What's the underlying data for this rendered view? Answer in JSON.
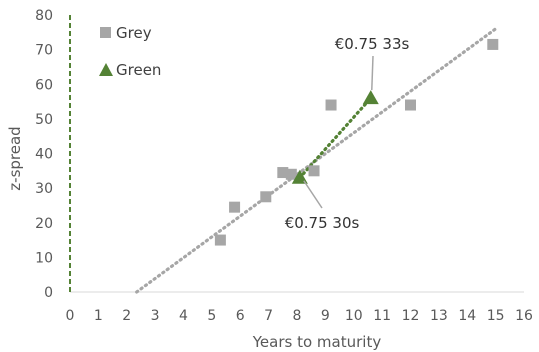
{
  "chart_data": {
    "type": "scatter",
    "xlabel": "Years to maturity",
    "ylabel": "z-spread",
    "xlim": [
      0,
      16
    ],
    "ylim": [
      0,
      80
    ],
    "xticks": [
      "0",
      "1",
      "2",
      "3",
      "4",
      "5",
      "6",
      "7",
      "8",
      "9",
      "10",
      "11",
      "12",
      "13",
      "14",
      "15",
      "16"
    ],
    "yticks": [
      "0",
      "10",
      "20",
      "30",
      "40",
      "50",
      "60",
      "70",
      "80"
    ],
    "grid": false,
    "legend_position": "top-left",
    "series": [
      {
        "name": "Grey",
        "marker": "square",
        "color": "#a6a6a6",
        "points": [
          {
            "x": 5.3,
            "y": 15
          },
          {
            "x": 5.8,
            "y": 24.5
          },
          {
            "x": 6.9,
            "y": 27.5
          },
          {
            "x": 7.5,
            "y": 34.5
          },
          {
            "x": 7.8,
            "y": 34
          },
          {
            "x": 8.6,
            "y": 35
          },
          {
            "x": 9.2,
            "y": 54
          },
          {
            "x": 12.0,
            "y": 54
          },
          {
            "x": 14.9,
            "y": 71.5
          }
        ]
      },
      {
        "name": "Green",
        "marker": "triangle",
        "color": "#548235",
        "points": [
          {
            "x": 8.1,
            "y": 33
          },
          {
            "x": 10.6,
            "y": 56
          }
        ]
      }
    ],
    "trendlines": [
      {
        "series": "Grey",
        "style": "dotted",
        "color": "#a6a6a6",
        "from": {
          "x": 2.35,
          "y": 0
        },
        "to": {
          "x": 15.0,
          "y": 76
        }
      },
      {
        "series": "Green",
        "style": "dotted",
        "color": "#548235",
        "from": {
          "x": 8.1,
          "y": 33
        },
        "to": {
          "x": 10.6,
          "y": 56
        }
      }
    ],
    "reference_lines": [
      {
        "orientation": "vertical",
        "x": 0,
        "style": "dashed",
        "color": "#548235"
      }
    ],
    "annotations": [
      {
        "text": "€0.75 33s",
        "target": {
          "x": 10.6,
          "y": 56
        }
      },
      {
        "text": "€0.75 30s",
        "target": {
          "x": 8.1,
          "y": 33
        }
      }
    ]
  }
}
